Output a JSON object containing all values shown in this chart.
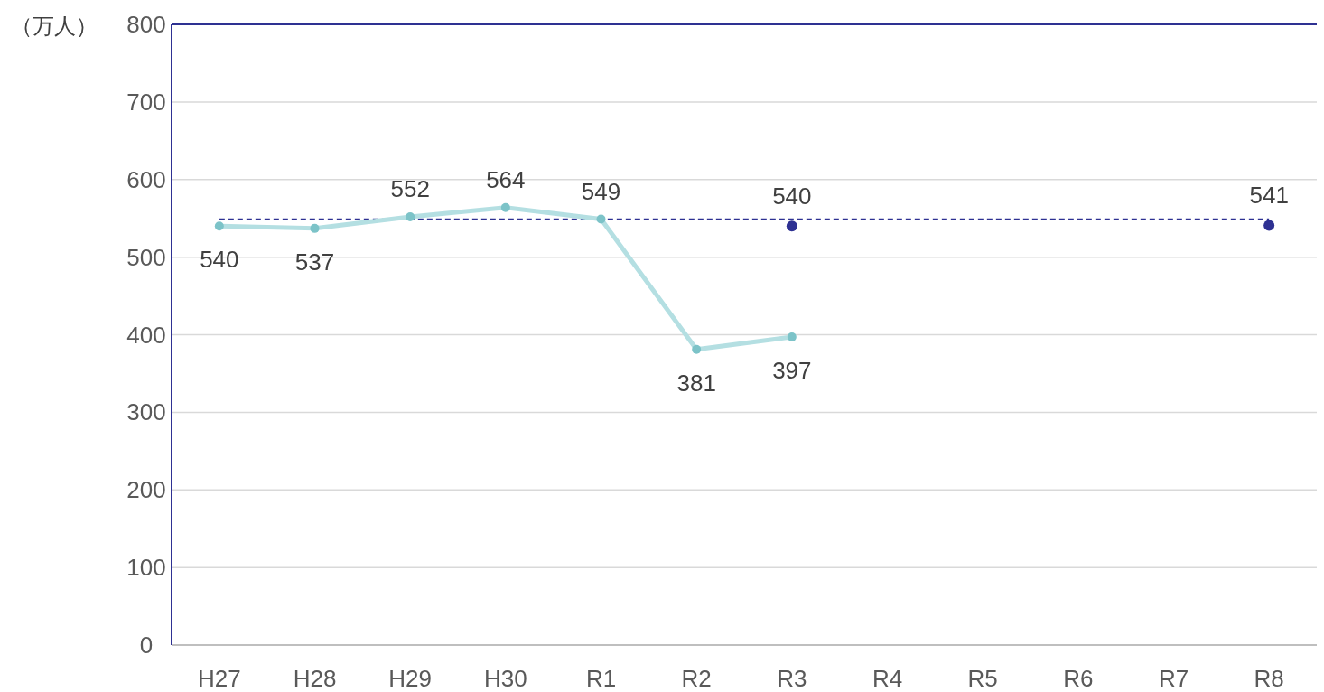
{
  "chart_data": {
    "type": "line",
    "ylabel": "（万人）",
    "categories": [
      "H27",
      "H28",
      "H29",
      "H30",
      "R1",
      "R2",
      "R3",
      "R4",
      "R5",
      "R6",
      "R7",
      "R8"
    ],
    "series": [
      {
        "color": "#b4dfe2",
        "values": [
          540,
          537,
          552,
          564,
          549,
          381,
          397,
          null,
          null,
          null,
          null,
          null
        ],
        "marker": "circle"
      },
      {
        "type": "scatter",
        "color": "#2e3192",
        "values": [
          null,
          null,
          null,
          null,
          null,
          null,
          540,
          null,
          null,
          null,
          null,
          541
        ],
        "marker": "circle"
      }
    ],
    "ylim": [
      0,
      800
    ],
    "yticks": [
      0,
      100,
      200,
      300,
      400,
      500,
      600,
      700,
      800
    ],
    "grid": "y",
    "data_labels": true,
    "ref_lines": [
      {
        "axis": "y",
        "value": 549,
        "color": "#2e3192",
        "line_style": "dashed"
      }
    ]
  }
}
